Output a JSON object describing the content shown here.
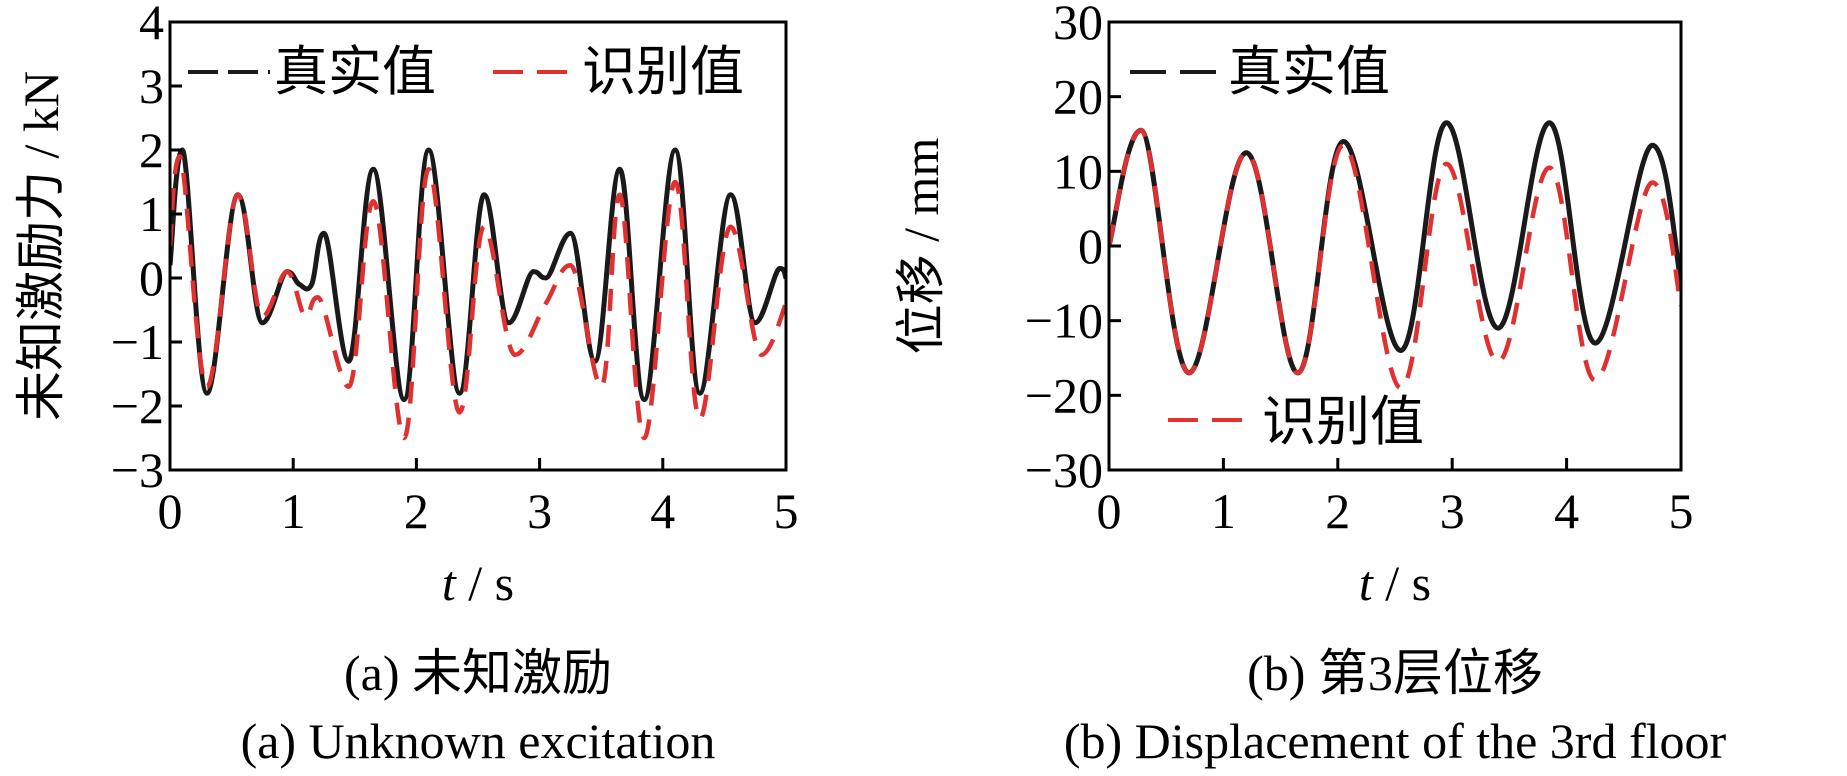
{
  "chart_data": [
    {
      "type": "line",
      "id": "a",
      "caption_cn": "(a)  未知激励",
      "caption_en": "(a)  Unknown excitation",
      "xlabel_var": "t",
      "xlabel_unit": " / s",
      "ylabel": "未知激励力 / kN",
      "xlim": [
        0,
        5
      ],
      "ylim": [
        -3,
        4
      ],
      "xticks": [
        0,
        1,
        2,
        3,
        4,
        5
      ],
      "yticks": [
        -3,
        -2,
        -1,
        0,
        1,
        2,
        3,
        4
      ],
      "ytick_labels": [
        "−3",
        "−2",
        "−1",
        "0",
        "1",
        "2",
        "3",
        "4"
      ],
      "legend": [
        {
          "label": "真实值",
          "series": 0
        },
        {
          "label": "识别值",
          "series": 1
        }
      ],
      "legend_position": "top",
      "grid": false,
      "series": [
        {
          "name": "真实值",
          "color": "#1a1a1a",
          "style": "solid",
          "x": [
            0,
            0.1,
            0.3,
            0.55,
            0.75,
            0.95,
            1.05,
            1.15,
            1.25,
            1.45,
            1.65,
            1.9,
            2.1,
            2.35,
            2.55,
            2.75,
            2.95,
            3.05,
            3.25,
            3.45,
            3.65,
            3.85,
            4.1,
            4.3,
            4.55,
            4.75,
            4.95,
            5.0
          ],
          "y": [
            0.2,
            2.0,
            -1.8,
            1.3,
            -0.7,
            0.1,
            -0.1,
            -0.1,
            0.7,
            -1.3,
            1.7,
            -1.9,
            2.0,
            -1.8,
            1.3,
            -0.7,
            0.1,
            0.0,
            0.7,
            -1.3,
            1.7,
            -1.9,
            2.0,
            -1.8,
            1.3,
            -0.7,
            0.15,
            0.0
          ]
        },
        {
          "name": "识别值",
          "color": "#e03030",
          "style": "dashed",
          "x": [
            0,
            0.08,
            0.3,
            0.55,
            0.75,
            0.95,
            1.1,
            1.2,
            1.45,
            1.65,
            1.9,
            2.1,
            2.35,
            2.55,
            2.8,
            3.05,
            3.25,
            3.5,
            3.65,
            3.85,
            4.1,
            4.3,
            4.55,
            4.8,
            5.0
          ],
          "y": [
            0.5,
            1.9,
            -1.7,
            1.3,
            -0.6,
            0.1,
            -0.6,
            -0.3,
            -1.7,
            1.2,
            -2.5,
            1.7,
            -2.1,
            0.8,
            -1.2,
            -0.4,
            0.2,
            -1.7,
            1.3,
            -2.5,
            1.5,
            -2.2,
            0.8,
            -1.2,
            -0.4
          ]
        }
      ]
    },
    {
      "type": "line",
      "id": "b",
      "caption_cn": "(b)  第3层位移",
      "caption_en": "(b)  Displacement of the 3rd floor",
      "xlabel_var": "t",
      "xlabel_unit": " / s",
      "ylabel": "位移 / mm",
      "xlim": [
        0,
        5
      ],
      "ylim": [
        -30,
        30
      ],
      "xticks": [
        0,
        1,
        2,
        3,
        4,
        5
      ],
      "yticks": [
        -30,
        -20,
        -10,
        0,
        10,
        20,
        30
      ],
      "ytick_labels": [
        "−30",
        "−20",
        "−10",
        "0",
        "10",
        "20",
        "30"
      ],
      "legend": [
        {
          "label": "真实值",
          "series": 0,
          "position": "top-left"
        },
        {
          "label": "识别值",
          "series": 1,
          "position": "bottom-left"
        }
      ],
      "grid": false,
      "series": [
        {
          "name": "真实值",
          "color": "#1a1a1a",
          "style": "solid",
          "x": [
            0,
            0.28,
            0.7,
            1.2,
            1.65,
            2.05,
            2.55,
            2.95,
            3.4,
            3.85,
            4.25,
            4.75,
            5.0
          ],
          "y": [
            0,
            15.5,
            -17,
            12.5,
            -17,
            14,
            -14,
            16.5,
            -11,
            16.5,
            -13,
            13.5,
            -5
          ]
        },
        {
          "name": "识别值",
          "color": "#e03030",
          "style": "dashed",
          "x": [
            0,
            0.28,
            0.7,
            1.2,
            1.65,
            2.05,
            2.55,
            2.95,
            3.4,
            3.85,
            4.25,
            4.75,
            5.0
          ],
          "y": [
            0,
            15.5,
            -17,
            12.5,
            -17,
            13.5,
            -19,
            11,
            -15.5,
            10.5,
            -18,
            8.5,
            -8
          ]
        }
      ]
    }
  ]
}
